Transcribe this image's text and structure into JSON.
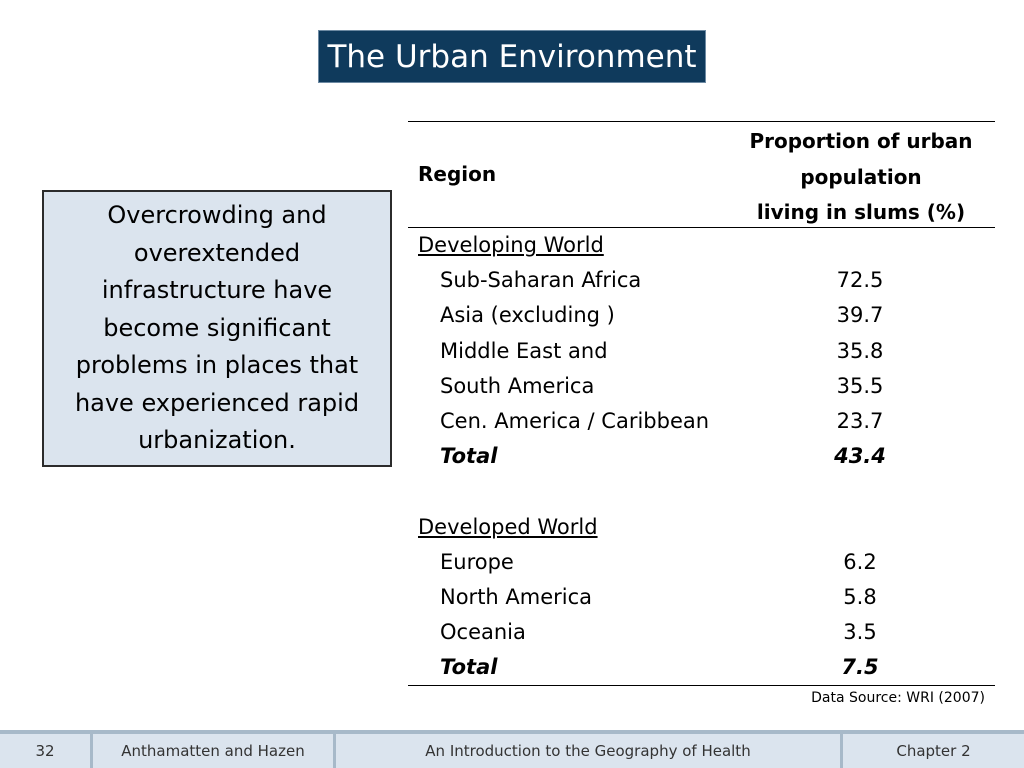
{
  "title": "The Urban Environment",
  "callout": "Overcrowding and overextended infrastructure have become significant problems in places that have experienced rapid urbanization.",
  "table": {
    "col_region": "Region",
    "col_prop_lines": [
      "Proportion of urban",
      "population",
      "living in slums (%)"
    ],
    "rows": [
      {
        "type": "group",
        "label": "Developing World",
        "value": ""
      },
      {
        "type": "item",
        "label": "Sub-Saharan Africa",
        "value": "72.5"
      },
      {
        "type": "item",
        "label": "Asia (excluding )",
        "value": "39.7"
      },
      {
        "type": "item",
        "label": "Middle East and",
        "value": "35.8"
      },
      {
        "type": "item",
        "label": "South America",
        "value": "35.5"
      },
      {
        "type": "item",
        "label": "Cen. America / Caribbean",
        "value": "23.7"
      },
      {
        "type": "total",
        "label": "Total",
        "value": "43.4"
      },
      {
        "type": "blank",
        "label": "",
        "value": ""
      },
      {
        "type": "group",
        "label": "Developed World",
        "value": ""
      },
      {
        "type": "item",
        "label": "Europe",
        "value": "6.2"
      },
      {
        "type": "item",
        "label": "North America",
        "value": "5.8"
      },
      {
        "type": "item",
        "label": "Oceania",
        "value": "3.5"
      },
      {
        "type": "total",
        "label": "Total",
        "value": "7.5"
      }
    ]
  },
  "source": "Data Source: WRI (2007)",
  "footer": {
    "page": "32",
    "authors": "Anthamatten and Hazen",
    "book": "An Introduction to the Geography of Health",
    "chapter": "Chapter 2"
  }
}
